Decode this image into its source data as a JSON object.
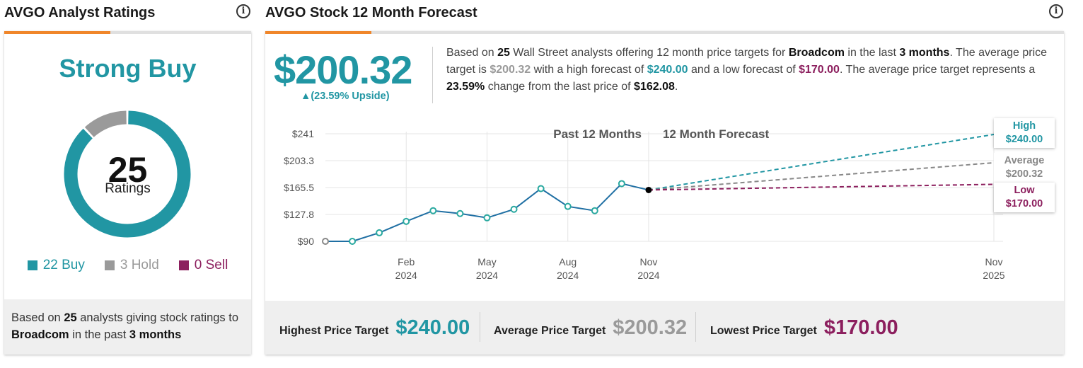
{
  "ratings_panel": {
    "title": "AVGO Analyst Ratings",
    "consensus": "Strong Buy",
    "total": "25",
    "total_label": "Ratings",
    "legend": [
      {
        "label": "22 Buy",
        "count": 22,
        "color": "#2196a3"
      },
      {
        "label": "3 Hold",
        "count": 3,
        "color": "#9a9a9a"
      },
      {
        "label": "0 Sell",
        "count": 0,
        "color": "#8c1f5e"
      }
    ],
    "footer": {
      "pre": "Based on ",
      "count": "25",
      "mid": " analysts giving stock ratings to ",
      "company": "Broadcom",
      "mid2": " in the past ",
      "period": "3 months"
    }
  },
  "forecast_panel": {
    "title": "AVGO Stock 12 Month Forecast",
    "price": "$200.32",
    "upside": "▲(23.59% Upside)",
    "description": {
      "p1": "Based on ",
      "count": "25",
      "p2": " Wall Street analysts offering 12 month price targets for ",
      "company": "Broadcom",
      "p3": " in the last ",
      "period": "3 months",
      "p4": ". The average price target is ",
      "avg": "$200.32",
      "p5": " with a high forecast of ",
      "high": "$240.00",
      "p6": " and a low forecast of ",
      "low": "$170.00",
      "p7": ". The average price target represents a ",
      "change": "23.59%",
      "p8": " change from the last price of ",
      "last": "$162.08",
      "p9": "."
    },
    "bottom": {
      "highest_label": "Highest Price Target",
      "highest_value": "$240.00",
      "average_label": "Average Price Target",
      "average_value": "$200.32",
      "lowest_label": "Lowest Price Target",
      "lowest_value": "$170.00"
    }
  },
  "colors": {
    "teal": "#2196a3",
    "grey": "#9a9a9a",
    "purple": "#8c1f5e",
    "line": "#1f6fa3",
    "accent": "#f0862a"
  },
  "chart_data": {
    "type": "line",
    "past_label": "Past 12 Months",
    "forecast_label": "12 Month Forecast",
    "y_ticks": [
      "$241",
      "$203.3",
      "$165.5",
      "$127.8",
      "$90"
    ],
    "y_tick_values": [
      241,
      203.3,
      165.5,
      127.8,
      90
    ],
    "ylim": [
      90,
      241
    ],
    "x_ticks": [
      {
        "month": "Feb",
        "year": "2024",
        "index": 3
      },
      {
        "month": "May",
        "year": "2024",
        "index": 6
      },
      {
        "month": "Aug",
        "year": "2024",
        "index": 9
      },
      {
        "month": "Nov",
        "year": "2024",
        "index": 12
      },
      {
        "month": "Nov",
        "year": "2025",
        "index": 24
      }
    ],
    "history": [
      {
        "label": "Nov 2023",
        "value": 90
      },
      {
        "label": "Dec 2023",
        "value": 90
      },
      {
        "label": "Jan 2024",
        "value": 102
      },
      {
        "label": "Feb 2024",
        "value": 118
      },
      {
        "label": "Mar 2024",
        "value": 133
      },
      {
        "label": "Apr 2024",
        "value": 129
      },
      {
        "label": "May 2024",
        "value": 123
      },
      {
        "label": "Jun 2024",
        "value": 135
      },
      {
        "label": "Jul 2024",
        "value": 164
      },
      {
        "label": "Aug 2024",
        "value": 139
      },
      {
        "label": "Sep 2024",
        "value": 133
      },
      {
        "label": "Oct 2024",
        "value": 171
      },
      {
        "label": "Nov 2024",
        "value": 162.08
      }
    ],
    "forecast": [
      {
        "name": "High",
        "value": 240,
        "value_label": "$240.00",
        "color": "#2196a3"
      },
      {
        "name": "Average",
        "value": 200.32,
        "value_label": "$200.32",
        "color": "#888888"
      },
      {
        "name": "Low",
        "value": 170,
        "value_label": "$170.00",
        "color": "#8c1f5e"
      }
    ]
  }
}
